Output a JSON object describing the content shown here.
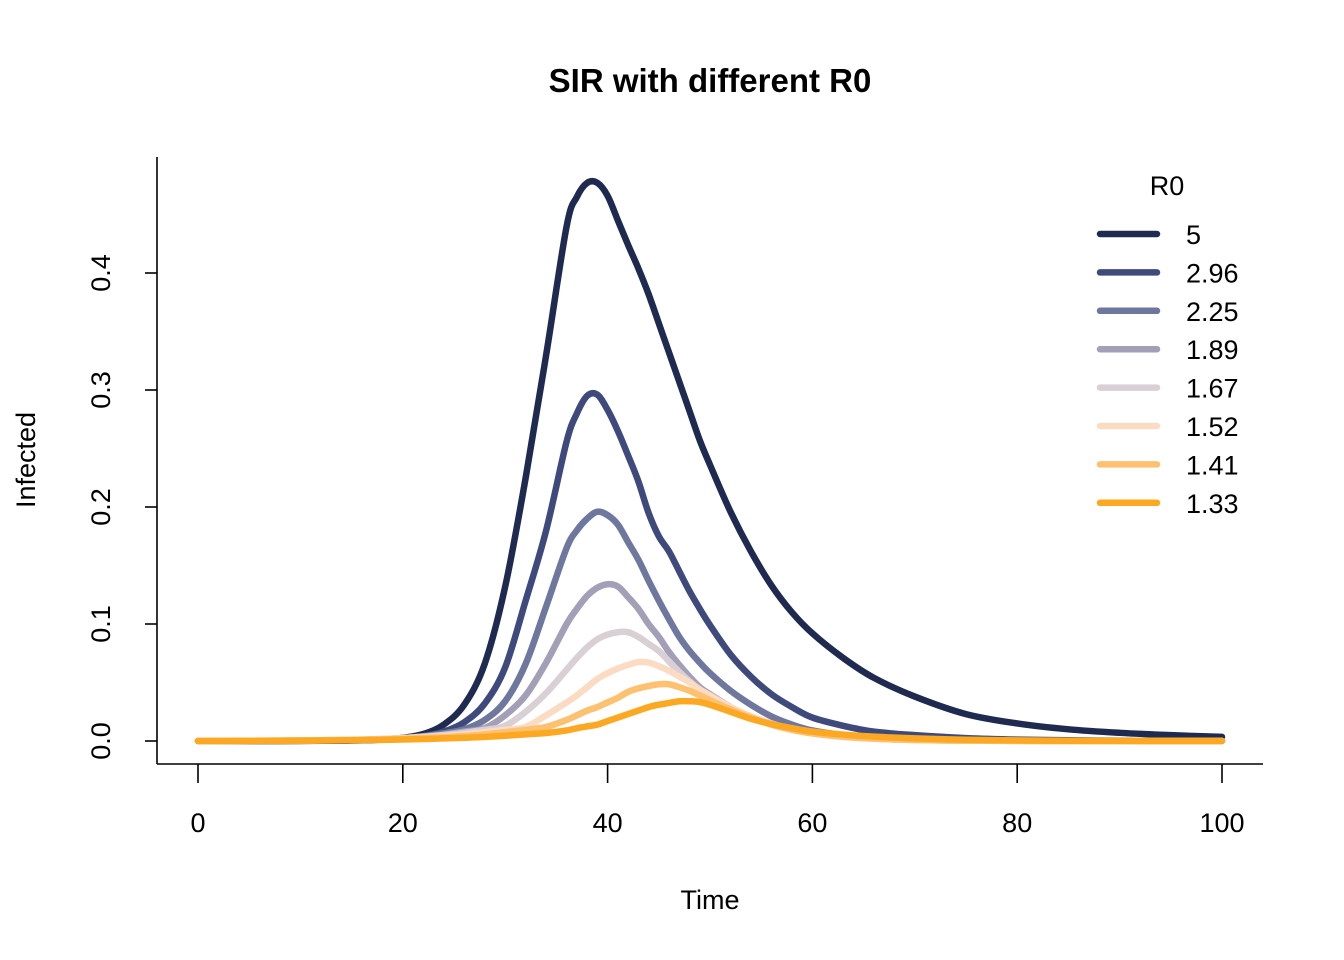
{
  "chart_data": {
    "type": "line",
    "title": "SIR with different R0",
    "xlabel": "Time",
    "ylabel": "Infected",
    "xlim": [
      0,
      100
    ],
    "ylim": [
      0,
      0.48
    ],
    "x_ticks": [
      {
        "value": 0,
        "label": "0"
      },
      {
        "value": 20,
        "label": "20"
      },
      {
        "value": 40,
        "label": "40"
      },
      {
        "value": 60,
        "label": "60"
      },
      {
        "value": 80,
        "label": "80"
      },
      {
        "value": 100,
        "label": "100"
      }
    ],
    "y_ticks": [
      {
        "value": 0.0,
        "label": "0.0"
      },
      {
        "value": 0.1,
        "label": "0.1"
      },
      {
        "value": 0.2,
        "label": "0.2"
      },
      {
        "value": 0.3,
        "label": "0.3"
      },
      {
        "value": 0.4,
        "label": "0.4"
      }
    ],
    "grid": false,
    "legend": {
      "title": "R0",
      "position": "top-right"
    },
    "x": [
      0,
      10,
      15,
      18,
      20,
      22,
      24,
      26,
      28,
      30,
      32,
      34,
      36,
      37,
      38,
      39,
      40,
      41,
      42,
      43,
      44,
      45,
      46,
      47,
      48,
      49,
      50,
      52,
      54,
      56,
      58,
      60,
      63,
      66,
      70,
      75,
      80,
      85,
      90,
      95,
      100
    ],
    "series": [
      {
        "name": "5",
        "color": "#1f2a50",
        "values": [
          0,
          0.0001,
          0.0004,
          0.0012,
          0.0027,
          0.006,
          0.014,
          0.031,
          0.066,
          0.132,
          0.225,
          0.33,
          0.44,
          0.465,
          0.477,
          0.477,
          0.466,
          0.445,
          0.424,
          0.404,
          0.382,
          0.357,
          0.332,
          0.307,
          0.282,
          0.257,
          0.236,
          0.196,
          0.162,
          0.133,
          0.11,
          0.092,
          0.071,
          0.054,
          0.038,
          0.023,
          0.015,
          0.01,
          0.007,
          0.005,
          0.0035
        ]
      },
      {
        "name": "2.96",
        "color": "#3e4a7b",
        "values": [
          0,
          0.0001,
          0.0005,
          0.0012,
          0.0022,
          0.0042,
          0.008,
          0.016,
          0.032,
          0.063,
          0.12,
          0.18,
          0.256,
          0.28,
          0.295,
          0.296,
          0.283,
          0.265,
          0.244,
          0.222,
          0.195,
          0.175,
          0.162,
          0.145,
          0.128,
          0.113,
          0.099,
          0.074,
          0.055,
          0.04,
          0.029,
          0.02,
          0.013,
          0.008,
          0.005,
          0.0025,
          0.0012,
          0.0006,
          0.0003,
          0.0001,
          0.0001
        ]
      },
      {
        "name": "2.25",
        "color": "#6e779e",
        "values": [
          0,
          0.0002,
          0.0007,
          0.0015,
          0.0025,
          0.004,
          0.0065,
          0.01,
          0.018,
          0.034,
          0.066,
          0.115,
          0.165,
          0.18,
          0.19,
          0.196,
          0.193,
          0.185,
          0.17,
          0.155,
          0.137,
          0.12,
          0.104,
          0.089,
          0.077,
          0.067,
          0.058,
          0.043,
          0.031,
          0.021,
          0.014,
          0.009,
          0.005,
          0.0028,
          0.0013,
          0.0005,
          0.0002,
          0.0001,
          0,
          0,
          0
        ]
      },
      {
        "name": "1.89",
        "color": "#a39fb7",
        "values": [
          0,
          0.0003,
          0.0008,
          0.0016,
          0.0025,
          0.0038,
          0.0055,
          0.008,
          0.011,
          0.022,
          0.039,
          0.067,
          0.1,
          0.113,
          0.124,
          0.131,
          0.134,
          0.132,
          0.123,
          0.113,
          0.1,
          0.089,
          0.076,
          0.065,
          0.055,
          0.046,
          0.04,
          0.029,
          0.021,
          0.015,
          0.01,
          0.007,
          0.004,
          0.0022,
          0.001,
          0.0004,
          0.0002,
          0.0001,
          0,
          0,
          0
        ]
      },
      {
        "name": "1.67",
        "color": "#d9d0d5",
        "values": [
          0,
          0.0004,
          0.001,
          0.0018,
          0.0025,
          0.0035,
          0.005,
          0.007,
          0.0095,
          0.013,
          0.025,
          0.041,
          0.061,
          0.071,
          0.08,
          0.087,
          0.091,
          0.093,
          0.093,
          0.089,
          0.083,
          0.077,
          0.068,
          0.059,
          0.051,
          0.044,
          0.038,
          0.028,
          0.02,
          0.014,
          0.0095,
          0.0065,
          0.0035,
          0.002,
          0.0009,
          0.0003,
          0.0001,
          0,
          0,
          0,
          0
        ]
      },
      {
        "name": "1.52",
        "color": "#fbdcc3",
        "values": [
          0,
          0.0004,
          0.001,
          0.0017,
          0.0023,
          0.003,
          0.004,
          0.0055,
          0.0075,
          0.0095,
          0.012,
          0.022,
          0.033,
          0.039,
          0.046,
          0.053,
          0.058,
          0.062,
          0.065,
          0.0675,
          0.067,
          0.064,
          0.06,
          0.055,
          0.05,
          0.044,
          0.039,
          0.029,
          0.021,
          0.015,
          0.01,
          0.007,
          0.004,
          0.002,
          0.0009,
          0.0003,
          0.0001,
          0,
          0,
          0,
          0
        ]
      },
      {
        "name": "1.41",
        "color": "#fdc16f",
        "values": [
          0,
          0.0004,
          0.0009,
          0.0014,
          0.0019,
          0.0025,
          0.0033,
          0.0043,
          0.0057,
          0.0075,
          0.0095,
          0.012,
          0.018,
          0.022,
          0.026,
          0.029,
          0.033,
          0.037,
          0.042,
          0.045,
          0.047,
          0.0485,
          0.0485,
          0.046,
          0.043,
          0.039,
          0.035,
          0.027,
          0.02,
          0.014,
          0.0095,
          0.0065,
          0.0037,
          0.002,
          0.0009,
          0.0003,
          0.0001,
          0,
          0,
          0,
          0
        ]
      },
      {
        "name": "1.33",
        "color": "#fda823",
        "values": [
          0,
          0.0003,
          0.0007,
          0.001,
          0.0013,
          0.0017,
          0.0022,
          0.0028,
          0.0035,
          0.0045,
          0.0057,
          0.0068,
          0.009,
          0.011,
          0.0125,
          0.014,
          0.017,
          0.02,
          0.023,
          0.026,
          0.029,
          0.031,
          0.0325,
          0.034,
          0.034,
          0.0333,
          0.031,
          0.025,
          0.019,
          0.0145,
          0.011,
          0.008,
          0.0055,
          0.0037,
          0.0022,
          0.0011,
          0.0005,
          0.0002,
          0.0001,
          0,
          0
        ]
      }
    ]
  }
}
